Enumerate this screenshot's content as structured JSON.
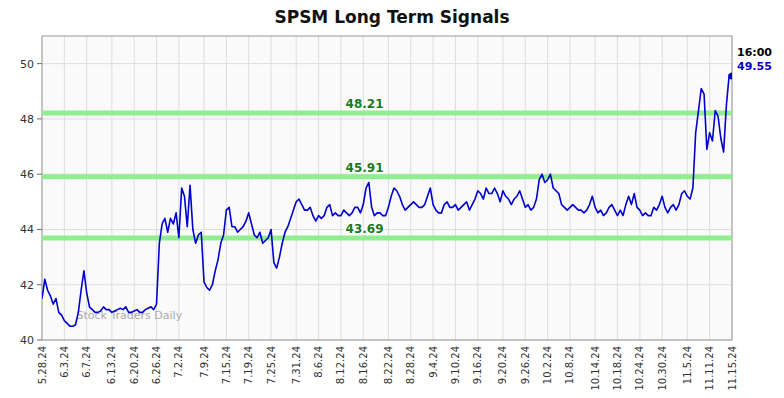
{
  "chart_data": {
    "type": "line",
    "title": "SPSM Long Term Signals",
    "categories": [
      "5.28.24",
      null,
      null,
      null,
      null,
      null,
      null,
      null,
      "6.3.24",
      null,
      null,
      null,
      null,
      null,
      null,
      null,
      "6.7.24",
      null,
      null,
      null,
      null,
      null,
      null,
      null,
      null,
      "6.13.24",
      null,
      null,
      null,
      null,
      null,
      null,
      null,
      "6.20.24",
      null,
      null,
      null,
      null,
      null,
      null,
      null,
      "6.26.24",
      null,
      null,
      null,
      null,
      null,
      null,
      null,
      "7.2.24",
      null,
      null,
      null,
      null,
      null,
      null,
      null,
      null,
      "7.9.24",
      null,
      null,
      null,
      null,
      null,
      null,
      null,
      "7.15.24",
      null,
      null,
      null,
      null,
      null,
      null,
      null,
      "7.19.24",
      null,
      null,
      null,
      null,
      null,
      null,
      null,
      "7.25.24",
      null,
      null,
      null,
      null,
      null,
      null,
      null,
      null,
      "7.31.24",
      null,
      null,
      null,
      null,
      null,
      null,
      null,
      "8.6.24",
      null,
      null,
      null,
      null,
      null,
      null,
      null,
      "8.12.24",
      null,
      null,
      null,
      null,
      null,
      null,
      null,
      "8.16.24",
      null,
      null,
      null,
      null,
      null,
      null,
      null,
      null,
      "8.22.24",
      null,
      null,
      null,
      null,
      null,
      null,
      null,
      "8.28.24",
      null,
      null,
      null,
      null,
      null,
      null,
      null,
      "9.4.24",
      null,
      null,
      null,
      null,
      null,
      null,
      null,
      "9.10.24",
      null,
      null,
      null,
      null,
      null,
      null,
      null,
      "9.16.24",
      null,
      null,
      null,
      null,
      null,
      null,
      null,
      null,
      "9.20.24",
      null,
      null,
      null,
      null,
      null,
      null,
      null,
      "9.26.24",
      null,
      null,
      null,
      null,
      null,
      null,
      null,
      "10.2.24",
      null,
      null,
      null,
      null,
      null,
      null,
      null,
      "10.8.24",
      null,
      null,
      null,
      null,
      null,
      null,
      null,
      null,
      "10.14.24",
      null,
      null,
      null,
      null,
      null,
      null,
      null,
      "10.18.24",
      null,
      null,
      null,
      null,
      null,
      null,
      null,
      "10.24.24",
      null,
      null,
      null,
      null,
      null,
      null,
      null,
      "10.30.24",
      null,
      null,
      null,
      null,
      null,
      null,
      null,
      null,
      "11.5.24",
      null,
      null,
      null,
      null,
      null,
      null,
      null,
      "11.11.24",
      null,
      null,
      null,
      null,
      null,
      null,
      null,
      "11.15.24"
    ],
    "values": [
      41.5,
      42.2,
      41.8,
      41.6,
      41.3,
      41.5,
      41.0,
      40.9,
      40.7,
      40.6,
      40.5,
      40.5,
      40.55,
      41.0,
      41.8,
      42.5,
      41.7,
      41.2,
      41.1,
      41.0,
      41.0,
      41.05,
      41.2,
      41.1,
      41.1,
      41.0,
      41.05,
      41.1,
      41.15,
      41.1,
      41.2,
      41.0,
      41.0,
      41.05,
      41.1,
      41.0,
      41.0,
      41.1,
      41.15,
      41.2,
      41.1,
      41.3,
      43.5,
      44.2,
      44.4,
      43.9,
      44.4,
      44.2,
      44.6,
      43.7,
      45.5,
      45.2,
      44.1,
      45.6,
      44.0,
      43.5,
      43.8,
      43.9,
      42.1,
      41.9,
      41.8,
      42.0,
      42.5,
      42.9,
      43.5,
      43.8,
      44.7,
      44.8,
      44.1,
      44.1,
      43.9,
      44.0,
      44.1,
      44.3,
      44.6,
      44.2,
      43.8,
      43.7,
      43.9,
      43.5,
      43.6,
      43.7,
      44.0,
      42.8,
      42.6,
      43.0,
      43.5,
      43.9,
      44.1,
      44.4,
      44.7,
      45.0,
      45.1,
      44.9,
      44.7,
      44.7,
      44.8,
      44.5,
      44.3,
      44.5,
      44.4,
      44.5,
      44.8,
      44.9,
      44.5,
      44.6,
      44.5,
      44.5,
      44.7,
      44.6,
      44.5,
      44.6,
      44.8,
      44.8,
      44.6,
      44.9,
      45.5,
      45.7,
      44.8,
      44.5,
      44.6,
      44.6,
      44.5,
      44.5,
      44.8,
      45.2,
      45.5,
      45.4,
      45.2,
      44.9,
      44.7,
      44.8,
      44.9,
      45.0,
      44.9,
      44.8,
      44.8,
      44.9,
      45.2,
      45.5,
      44.9,
      44.7,
      44.6,
      44.6,
      44.9,
      45.0,
      44.8,
      44.8,
      44.9,
      44.7,
      44.8,
      44.9,
      45.0,
      44.7,
      44.9,
      45.1,
      45.4,
      45.3,
      45.1,
      45.5,
      45.3,
      45.3,
      45.5,
      45.3,
      45.0,
      45.4,
      45.2,
      45.1,
      44.9,
      45.1,
      45.2,
      45.4,
      45.1,
      44.8,
      44.9,
      44.7,
      44.8,
      45.1,
      45.8,
      46.0,
      45.7,
      45.8,
      46.0,
      45.5,
      45.4,
      45.3,
      44.9,
      44.8,
      44.7,
      44.8,
      44.9,
      44.8,
      44.7,
      44.7,
      44.6,
      44.7,
      44.9,
      45.2,
      44.8,
      44.6,
      44.7,
      44.5,
      44.6,
      44.8,
      44.9,
      44.7,
      44.5,
      44.7,
      44.5,
      44.9,
      45.2,
      44.9,
      45.3,
      44.8,
      44.7,
      44.5,
      44.6,
      44.5,
      44.5,
      44.8,
      44.7,
      44.9,
      45.2,
      44.8,
      44.6,
      44.8,
      44.9,
      44.7,
      44.9,
      45.3,
      45.4,
      45.2,
      45.1,
      45.5,
      47.5,
      48.3,
      49.1,
      48.9,
      46.9,
      47.5,
      47.2,
      48.3,
      48.1,
      47.3,
      46.8,
      48.5,
      49.6,
      49.55
    ],
    "color": "#0000cc",
    "ylim": [
      40,
      51
    ],
    "yticks": [
      40,
      42,
      44,
      46,
      48,
      50
    ],
    "grid": true,
    "hlines": {
      "values": [
        43.69,
        45.91,
        48.21
      ],
      "color": "#90ee90"
    },
    "annotations": [
      {
        "text": "16:00"
      },
      {
        "text": "49.55"
      },
      {
        "text": "Stock Traders Daily"
      }
    ]
  }
}
